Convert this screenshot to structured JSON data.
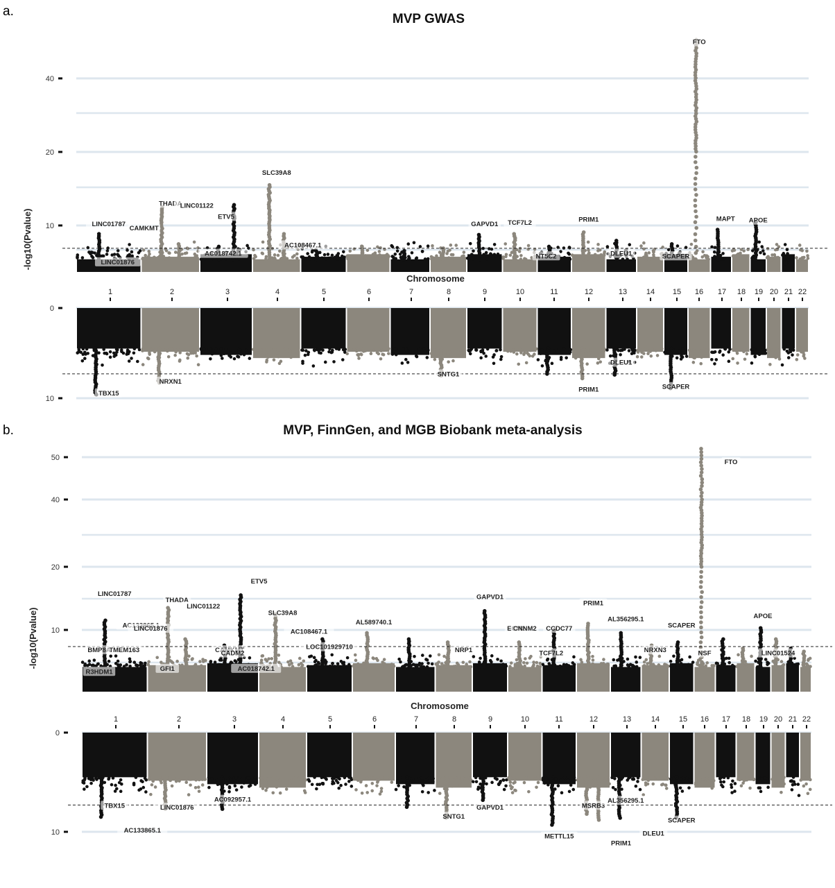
{
  "figure": {
    "panel_a_letter": "a.",
    "panel_b_letter": "b."
  },
  "colors": {
    "odd_chromosome": "#111111",
    "even_chromosome": "#8c877d",
    "grid": "#dde6ee",
    "threshold_line": "#222222"
  },
  "chart_data": [
    {
      "type": "scatter",
      "subtype": "miami-plot",
      "title": "MVP GWAS",
      "xlabel": "Chromosome",
      "ylabel": "-log10(Pvalue)",
      "chromosomes": [
        "1",
        "2",
        "3",
        "4",
        "5",
        "6",
        "7",
        "8",
        "9",
        "10",
        "11",
        "12",
        "13",
        "14",
        "15",
        "16",
        "17",
        "18",
        "19",
        "20",
        "21",
        "22"
      ],
      "top": {
        "ylim": [
          4.5,
          52
        ],
        "yticks": [
          10,
          20,
          40
        ],
        "threshold": 7.3,
        "peaks": [
          {
            "chr": "1",
            "value": 9.0
          },
          {
            "chr": "2",
            "value": 12.5
          },
          {
            "chr": "2",
            "value": 7.8
          },
          {
            "chr": "3",
            "value": 7.5
          },
          {
            "chr": "3",
            "value": 12.8
          },
          {
            "chr": "4",
            "value": 15.5
          },
          {
            "chr": "4",
            "value": 9.0
          },
          {
            "chr": "5",
            "value": 7.0
          },
          {
            "chr": "6",
            "value": 7.5
          },
          {
            "chr": "7",
            "value": 7.0
          },
          {
            "chr": "8",
            "value": 7.3
          },
          {
            "chr": "9",
            "value": 8.9
          },
          {
            "chr": "10",
            "value": 9.0
          },
          {
            "chr": "11",
            "value": 7.5
          },
          {
            "chr": "12",
            "value": 9.2
          },
          {
            "chr": "13",
            "value": 8.2
          },
          {
            "chr": "14",
            "value": 6.5
          },
          {
            "chr": "15",
            "value": 7.8
          },
          {
            "chr": "16",
            "value": 50.5
          },
          {
            "chr": "17",
            "value": 9.5
          },
          {
            "chr": "18",
            "value": 6.5
          },
          {
            "chr": "19",
            "value": 10.5
          },
          {
            "chr": "20",
            "value": 6.0
          },
          {
            "chr": "21",
            "value": 5.5
          },
          {
            "chr": "22",
            "value": 5.5
          }
        ],
        "labels": [
          {
            "text": "LINC01787",
            "chr": "1",
            "value": 10.0
          },
          {
            "text": "THADA",
            "chr": "2",
            "value": 12.8
          },
          {
            "text": "LINC01122",
            "chr": "2",
            "value": 12.5
          },
          {
            "text": "CAMKMT",
            "chr": "2",
            "value": 9.5
          },
          {
            "text": "AC018742.1",
            "chr": "2",
            "value": 6.5
          },
          {
            "text": "LINC01876",
            "chr": "2",
            "value": 5.5
          },
          {
            "text": "ETV5",
            "chr": "3",
            "value": 11.0
          },
          {
            "text": "SLC39A8",
            "chr": "4",
            "value": 17.0
          },
          {
            "text": "AC108467.1",
            "chr": "4",
            "value": 7.5
          },
          {
            "text": "GAPVD1",
            "chr": "9",
            "value": 10.0
          },
          {
            "text": "TCF7L2",
            "chr": "10",
            "value": 10.2
          },
          {
            "text": "NT5C2",
            "chr": "10",
            "value": 6.2
          },
          {
            "text": "PRIM1",
            "chr": "12",
            "value": 10.6
          },
          {
            "text": "DLEU1",
            "chr": "13",
            "value": 6.5
          },
          {
            "text": "SCAPER",
            "chr": "15",
            "value": 6.2
          },
          {
            "text": "FTO",
            "chr": "16",
            "value": 49.5
          },
          {
            "text": "MAPT",
            "chr": "16",
            "value": 10.7
          },
          {
            "text": "APOE",
            "chr": "19",
            "value": 10.5
          }
        ]
      },
      "bottom": {
        "ylim": [
          0,
          10
        ],
        "yticks": [
          0,
          10
        ],
        "threshold": 7.3,
        "peaks": [
          {
            "chr": "1",
            "value": 9.6
          },
          {
            "chr": "2",
            "value": 8.3
          },
          {
            "chr": "8",
            "value": 7.5
          },
          {
            "chr": "11",
            "value": 7.3
          },
          {
            "chr": "12",
            "value": 7.8
          },
          {
            "chr": "13",
            "value": 7.4
          },
          {
            "chr": "15",
            "value": 8.9
          }
        ],
        "labels": [
          {
            "text": "TBX15",
            "chr": "1",
            "value": 9.6
          },
          {
            "text": "NRXN1",
            "chr": "2",
            "value": 8.3
          },
          {
            "text": "SNTG1",
            "chr": "8",
            "value": 7.5
          },
          {
            "text": "PRIM1",
            "chr": "12",
            "value": 9.2
          },
          {
            "text": "DLEU1",
            "chr": "13",
            "value": 6.2
          },
          {
            "text": "SCAPER",
            "chr": "15",
            "value": 8.9
          }
        ]
      }
    },
    {
      "type": "scatter",
      "subtype": "miami-plot",
      "title": "MVP, FinnGen, and MGB Biobank meta-analysis",
      "xlabel": "Chromosome",
      "ylabel": "-log10(Pvalue)",
      "chromosomes": [
        "1",
        "2",
        "3",
        "4",
        "5",
        "6",
        "7",
        "8",
        "9",
        "10",
        "11",
        "12",
        "13",
        "14",
        "15",
        "16",
        "17",
        "18",
        "19",
        "20",
        "21",
        "22"
      ],
      "top": {
        "ylim": [
          0,
          52
        ],
        "yticks": [
          10,
          20,
          40,
          50
        ],
        "threshold": 7.3,
        "peaks": [
          {
            "chr": "1",
            "value": 11.5
          },
          {
            "chr": "2",
            "value": 13.5
          },
          {
            "chr": "2",
            "value": 8.5
          },
          {
            "chr": "3",
            "value": 7.5
          },
          {
            "chr": "3",
            "value": 15.5
          },
          {
            "chr": "4",
            "value": 12.5
          },
          {
            "chr": "5",
            "value": 8.5
          },
          {
            "chr": "6",
            "value": 9.5
          },
          {
            "chr": "7",
            "value": 8.5
          },
          {
            "chr": "8",
            "value": 8.0
          },
          {
            "chr": "9",
            "value": 13.0
          },
          {
            "chr": "10",
            "value": 8.0
          },
          {
            "chr": "11",
            "value": 10.0
          },
          {
            "chr": "12",
            "value": 11.0
          },
          {
            "chr": "13",
            "value": 9.5
          },
          {
            "chr": "14",
            "value": 7.5
          },
          {
            "chr": "15",
            "value": 8.0
          },
          {
            "chr": "16",
            "value": 52.0
          },
          {
            "chr": "17",
            "value": 8.5
          },
          {
            "chr": "18",
            "value": 7.0
          },
          {
            "chr": "19",
            "value": 10.3
          },
          {
            "chr": "20",
            "value": 8.5
          },
          {
            "chr": "21",
            "value": 7.0
          },
          {
            "chr": "22",
            "value": 6.5
          }
        ],
        "labels": [
          {
            "text": "LINC01787",
            "chr": "1",
            "value": 15.5
          },
          {
            "text": "AC133865.1",
            "chr": "1",
            "value": 10.5
          },
          {
            "text": "BMP8A",
            "chr": "1",
            "value": 6.5
          },
          {
            "text": "GFI1",
            "chr": "1",
            "value": 3.5
          },
          {
            "text": "THADA",
            "chr": "2",
            "value": 14.5
          },
          {
            "text": "LINC01122",
            "chr": "2",
            "value": 13.5
          },
          {
            "text": "LINC01876",
            "chr": "2",
            "value": 10.0
          },
          {
            "text": "CAMKMT",
            "chr": "2",
            "value": 6.5
          },
          {
            "text": "TMEM163",
            "chr": "2",
            "value": 6.5
          },
          {
            "text": "AC018742.1",
            "chr": "2",
            "value": 3.5
          },
          {
            "text": "R3HDM1",
            "chr": "2",
            "value": 3.0
          },
          {
            "text": "CADM2",
            "chr": "3",
            "value": 6.0
          },
          {
            "text": "ETV5",
            "chr": "3",
            "value": 17.5
          },
          {
            "text": "SLC39A8",
            "chr": "4",
            "value": 12.5
          },
          {
            "text": "AC108467.1",
            "chr": "4",
            "value": 9.5
          },
          {
            "text": "LOC101929710",
            "chr": "5",
            "value": 7.0
          },
          {
            "text": "AL589740.1",
            "chr": "6",
            "value": 11.0
          },
          {
            "text": "GAPVD1",
            "chr": "9",
            "value": 15.0
          },
          {
            "text": "ECM2",
            "chr": "9",
            "value": 10.0
          },
          {
            "text": "NRP1",
            "chr": "9",
            "value": 6.5
          },
          {
            "text": "CNNM2",
            "chr": "10",
            "value": 10.0
          },
          {
            "text": "TCF7L2",
            "chr": "10",
            "value": 6.0
          },
          {
            "text": "CCDC77",
            "chr": "11",
            "value": 10.0
          },
          {
            "text": "PRIM1",
            "chr": "12",
            "value": 14.0
          },
          {
            "text": "AL356295.1",
            "chr": "13",
            "value": 11.5
          },
          {
            "text": "NRXN3",
            "chr": "14",
            "value": 6.5
          },
          {
            "text": "SCAPER",
            "chr": "15",
            "value": 10.5
          },
          {
            "text": "NSF",
            "chr": "16",
            "value": 6.0
          },
          {
            "text": "FTO",
            "chr": "16",
            "value": 48.5
          },
          {
            "text": "APOE",
            "chr": "19",
            "value": 12.0
          },
          {
            "text": "LINC01524",
            "chr": "20",
            "value": 6.0
          }
        ]
      },
      "bottom": {
        "ylim": [
          0,
          11
        ],
        "yticks": [
          0,
          10
        ],
        "threshold": 7.3,
        "peaks": [
          {
            "chr": "1",
            "value": 8.5
          },
          {
            "chr": "2",
            "value": 7.7
          },
          {
            "chr": "3",
            "value": 7.7
          },
          {
            "chr": "7",
            "value": 7.5
          },
          {
            "chr": "8",
            "value": 8.6
          },
          {
            "chr": "9",
            "value": 6.8
          },
          {
            "chr": "11",
            "value": 9.3
          },
          {
            "chr": "12",
            "value": 8.2
          },
          {
            "chr": "12",
            "value": 8.8
          },
          {
            "chr": "13",
            "value": 8.6
          },
          {
            "chr": "15",
            "value": 8.6
          }
        ],
        "labels": [
          {
            "text": "TBX15",
            "chr": "1",
            "value": 7.5
          },
          {
            "text": "AC133865.1",
            "chr": "1",
            "value": 10.0
          },
          {
            "text": "LINC01876",
            "chr": "2",
            "value": 7.7
          },
          {
            "text": "AC092957.1",
            "chr": "3",
            "value": 6.9
          },
          {
            "text": "SNTG1",
            "chr": "8",
            "value": 8.6
          },
          {
            "text": "GAPVD1",
            "chr": "9",
            "value": 7.7
          },
          {
            "text": "METTL15",
            "chr": "11",
            "value": 10.6
          },
          {
            "text": "MSRB3",
            "chr": "12",
            "value": 7.5
          },
          {
            "text": "PRIM1",
            "chr": "12",
            "value": 11.3
          },
          {
            "text": "AL356295.1",
            "chr": "13",
            "value": 7.0
          },
          {
            "text": "DLEU1",
            "chr": "13",
            "value": 10.3
          },
          {
            "text": "SCAPER",
            "chr": "15",
            "value": 9.0
          }
        ]
      }
    }
  ]
}
